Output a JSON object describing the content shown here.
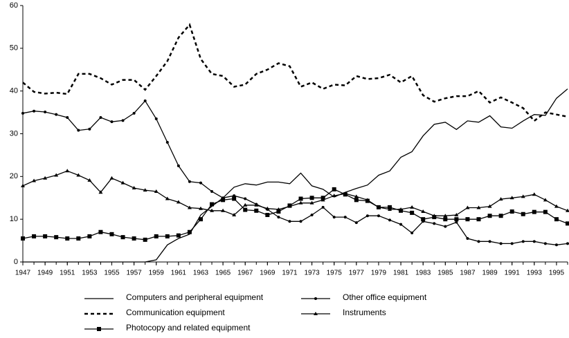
{
  "chart_data": {
    "type": "line",
    "x": [
      1947,
      1948,
      1949,
      1950,
      1951,
      1952,
      1953,
      1954,
      1955,
      1956,
      1957,
      1958,
      1959,
      1960,
      1961,
      1962,
      1963,
      1964,
      1965,
      1966,
      1967,
      1968,
      1969,
      1970,
      1971,
      1972,
      1973,
      1974,
      1975,
      1976,
      1977,
      1978,
      1979,
      1980,
      1981,
      1982,
      1983,
      1984,
      1985,
      1986,
      1987,
      1988,
      1989,
      1990,
      1991,
      1992,
      1993,
      1994,
      1995,
      1996
    ],
    "xlim": [
      1947,
      1996
    ],
    "xticks": [
      1947,
      1949,
      1951,
      1953,
      1955,
      1957,
      1959,
      1961,
      1963,
      1965,
      1967,
      1969,
      1971,
      1973,
      1975,
      1977,
      1979,
      1981,
      1983,
      1985,
      1987,
      1989,
      1991,
      1993,
      1995
    ],
    "ylim": [
      0,
      60
    ],
    "yticks": [
      0,
      10,
      20,
      30,
      40,
      50,
      60
    ],
    "grid": false,
    "series": [
      {
        "name": "Computers and peripheral equipment",
        "color": "#000000",
        "dash": "solid",
        "marker": "none",
        "values": [
          0,
          0,
          0,
          0,
          0,
          0,
          0,
          0,
          0,
          0,
          0,
          0,
          0.5,
          4,
          5.5,
          6.5,
          11,
          13,
          15,
          17.5,
          18.3,
          18,
          18.7,
          18.7,
          18.3,
          20.8,
          17.8,
          17,
          15.2,
          16.3,
          17.2,
          18,
          20.3,
          21.3,
          24.5,
          25.8,
          29.5,
          32.2,
          32.7,
          31,
          33,
          32.7,
          34.2,
          31.6,
          31.3,
          33,
          34.5,
          34.3,
          38.3,
          40.5
        ]
      },
      {
        "name": "Other office equipment",
        "color": "#000000",
        "dash": "solid",
        "marker": "dot",
        "values": [
          34.8,
          35.3,
          35.1,
          34.5,
          33.8,
          30.8,
          31.1,
          33.8,
          32.8,
          33.1,
          34.8,
          37.7,
          33.5,
          28,
          22.5,
          18.8,
          18.5,
          16.5,
          15,
          15.5,
          14.8,
          13.5,
          12.3,
          10.5,
          9.5,
          9.5,
          11,
          12.8,
          10.5,
          10.5,
          9.2,
          10.8,
          10.8,
          9.8,
          8.8,
          6.8,
          9.5,
          9,
          8.3,
          9.3,
          5.5,
          4.8,
          4.8,
          4.3,
          4.3,
          4.8,
          4.8,
          4.3,
          4,
          4.3
        ]
      },
      {
        "name": "Communication equipment",
        "color": "#000000",
        "dash": "dashed",
        "marker": "none",
        "values": [
          42,
          39.8,
          39.4,
          39.6,
          39.3,
          44,
          44,
          43,
          41.5,
          42.6,
          42.6,
          40.3,
          43.5,
          47,
          52.5,
          55.5,
          47.5,
          44,
          43.5,
          41,
          41.5,
          44,
          45,
          46.5,
          45.8,
          41,
          42,
          40.5,
          41.5,
          41.3,
          43.5,
          42.8,
          43,
          43.8,
          42,
          43.5,
          39,
          37.5,
          38.3,
          38.8,
          38.8,
          40,
          37.3,
          38.5,
          37.3,
          36,
          33,
          35,
          34.5,
          34
        ]
      },
      {
        "name": "Instruments",
        "color": "#000000",
        "dash": "solid",
        "marker": "triangle",
        "values": [
          17.8,
          19,
          19.6,
          20.3,
          21.3,
          20.3,
          19.1,
          16.3,
          19.6,
          18.5,
          17.3,
          16.8,
          16.5,
          14.8,
          14,
          12.7,
          12.5,
          12,
          12,
          11,
          13.3,
          13.3,
          12.5,
          12.3,
          13,
          13.8,
          13.8,
          14.5,
          15.5,
          16,
          15.3,
          14.5,
          12.8,
          12.3,
          12.3,
          12.8,
          11.8,
          10.8,
          10.8,
          11,
          12.7,
          12.7,
          13,
          14.7,
          15,
          15.3,
          15.8,
          14.5,
          13,
          12
        ]
      },
      {
        "name": "Photocopy and related equipment",
        "color": "#000000",
        "dash": "solid",
        "marker": "square",
        "values": [
          5.5,
          6,
          6,
          5.8,
          5.5,
          5.5,
          6,
          7,
          6.5,
          5.8,
          5.5,
          5.2,
          6,
          6,
          6.2,
          7,
          10,
          13.5,
          14.5,
          14.8,
          12.2,
          12,
          11,
          11.8,
          13.2,
          14.8,
          15,
          15,
          17,
          15.8,
          14.5,
          14.3,
          12.8,
          12.8,
          12,
          11.5,
          10,
          10.5,
          10,
          10,
          10,
          10,
          10.8,
          10.8,
          11.8,
          11.2,
          11.7,
          11.7,
          10,
          9
        ]
      }
    ]
  }
}
